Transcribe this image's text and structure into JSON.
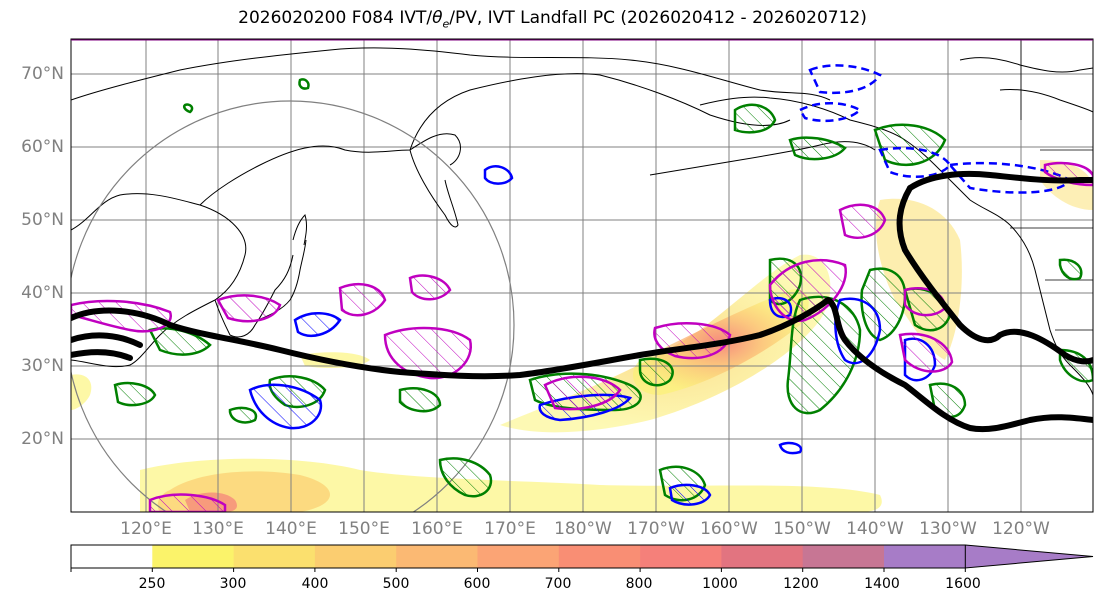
{
  "title": "2026020200 F084 IVT/θe/PV, IVT Landfall PC (2026020412 - 2026020712)",
  "lat_labels": [
    "70°N",
    "60°N",
    "50°N",
    "40°N",
    "30°N",
    "20°N"
  ],
  "lon_labels": [
    "120°E",
    "130°E",
    "140°E",
    "150°E",
    "160°E",
    "170°E",
    "180°W",
    "170°W",
    "160°W",
    "150°W",
    "140°W",
    "130°W",
    "120°W"
  ],
  "colorbar": {
    "ticks": [
      "250",
      "300",
      "400",
      "500",
      "600",
      "700",
      "800",
      "1000",
      "1200",
      "1400",
      "1600"
    ],
    "colors": [
      "#ffffff",
      "#fbf36a",
      "#fbe06e",
      "#fbcd70",
      "#fbb973",
      "#fba475",
      "#f98e74",
      "#f5807a",
      "#e27480",
      "#c77694",
      "#a77cc7"
    ]
  },
  "legend_colors": {
    "ivt_fill": "#fbd76a",
    "pc_line": "#000000",
    "theta_e": "#008000",
    "pv_blue": "#0000ff",
    "pv_magenta": "#c000c0",
    "range_circle": "#808080"
  }
}
